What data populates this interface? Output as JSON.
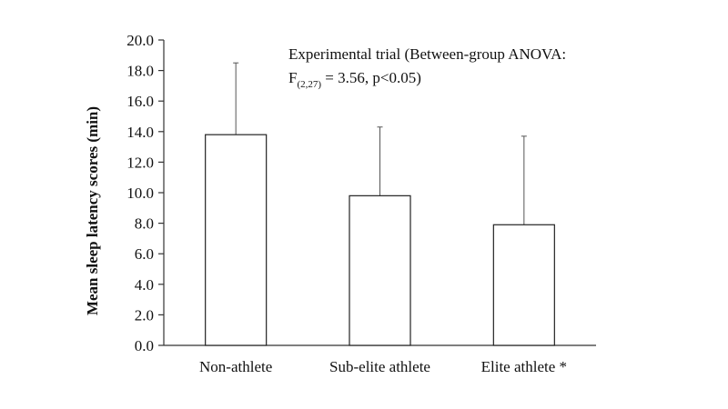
{
  "chart_data": {
    "type": "bar",
    "categories": [
      "Non-athlete",
      "Sub-elite athlete",
      "Elite athlete *"
    ],
    "values": [
      13.8,
      9.8,
      7.9
    ],
    "error_upper": [
      18.5,
      14.3,
      13.7
    ],
    "ylabel": "Mean sleep latency scores (min)",
    "xlabel": "",
    "ylim": [
      0,
      20
    ],
    "yticks": [
      "0.0",
      "2.0",
      "4.0",
      "6.0",
      "8.0",
      "10.0",
      "12.0",
      "14.0",
      "16.0",
      "18.0",
      "20.0"
    ],
    "grid": false,
    "annotation": {
      "line1": "Experimental trial (Between-group ANOVA:",
      "line2_prefix": "F",
      "line2_subscript": "(2,27)",
      "line2_suffix": " = 3.56, p<0.05)"
    },
    "colors": {
      "bar_fill": "#ffffff",
      "bar_stroke": "#222222",
      "axis": "#333333"
    }
  }
}
